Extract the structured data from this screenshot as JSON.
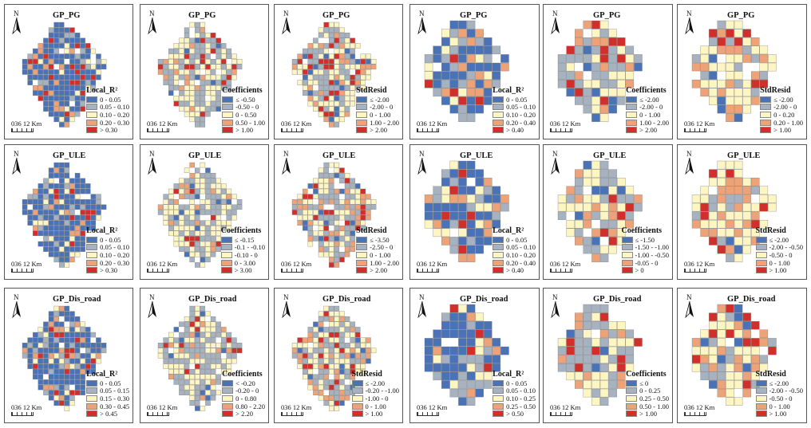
{
  "colors": {
    "blue": "#4a73b7",
    "grey": "#a6b2c0",
    "cream": "#fdf5c2",
    "orange": "#eda277",
    "red": "#d12f2c"
  },
  "scale_label": "036 12 Km",
  "north_label": "N",
  "panels": [
    {
      "title": "GP_PG",
      "legend_title": "Local_R²",
      "legend_items": [
        "0 - 0.05",
        "0.05 - 0.10",
        "0.10 - 0.20",
        "0.20 - 0.30",
        "> 0.30"
      ]
    },
    {
      "title": "GP_PG",
      "legend_title": "Coefficients",
      "legend_items": [
        "≤ -0.50",
        "-0.50 - 0",
        "0 - 0.50",
        "0.50 - 1.00",
        "> 1.00"
      ]
    },
    {
      "title": "GP_PG",
      "legend_title": "StdResid",
      "legend_items": [
        "≤ -2.00",
        "-2.00 - 0",
        "0 - 1.00",
        "1.00 - 2.00",
        "> 2.00"
      ]
    },
    {
      "title": "GP_PG",
      "legend_title": "Local_R²",
      "legend_items": [
        "0 - 0.05",
        "0.05 - 0.10",
        "0.10 - 0.20",
        "0.20 - 0.40",
        "> 0.40"
      ]
    },
    {
      "title": "GP_PG",
      "legend_title": "Coefficients",
      "legend_items": [
        "≤ -2.00",
        "-2.00 - 0",
        "0 - 1.00",
        "1.00 - 2.00",
        "> 2.00"
      ]
    },
    {
      "title": "GP_PG",
      "legend_title": "StdResid",
      "legend_items": [
        "≤ -2.00",
        "-2.00 - 0",
        "0 - 0.20",
        "0.20 - 1.00",
        "> 1.00"
      ]
    },
    {
      "title": "GP_ULE",
      "legend_title": "Local_R²",
      "legend_items": [
        "0 - 0.05",
        "0.05 - 0.10",
        "0.10 - 0.20",
        "0.20 - 0.30",
        "> 0.30"
      ]
    },
    {
      "title": "GP_ULE",
      "legend_title": "Coefficients",
      "legend_items": [
        "≤ -0.15",
        "-0.1 - -0.10",
        "-0.10 - 0",
        "0 - 3.00",
        "> 3.00"
      ]
    },
    {
      "title": "GP_ULE",
      "legend_title": "StdResid",
      "legend_items": [
        "≤ -3.50",
        "-2.50 - 0",
        "0 - 1.00",
        "1.00 - 2.00",
        "> 2.00"
      ]
    },
    {
      "title": "GP_ULE",
      "legend_title": "Local_R²",
      "legend_items": [
        "0 - 0.05",
        "0.05 - 0.10",
        "0.10 - 0.20",
        "0.20 - 0.40",
        "> 0.40"
      ]
    },
    {
      "title": "GP_ULE",
      "legend_title": "Coefficients",
      "legend_items": [
        "≤ -1.50",
        "-1.50 - -1.00",
        "-1.00 - -0.50",
        "-0.05 - 0",
        "> 0"
      ]
    },
    {
      "title": "GP_ULE",
      "legend_title": "StdResid",
      "legend_items": [
        "≤ -2.00",
        "-2.00 - -0.50",
        "-0.50 - 0",
        "0 - 1.00",
        "> 1.00"
      ]
    },
    {
      "title": "GP_Dis_road",
      "legend_title": "Local_R²",
      "legend_items": [
        "0 - 0.05",
        "0.05 - 0.15",
        "0.15 - 0.30",
        "0.30 - 0.45",
        "> 0.45"
      ]
    },
    {
      "title": "GP_Dis_road",
      "legend_title": "Coefficients",
      "legend_items": [
        "< -0.20",
        "-0.20 - 0",
        "0 - 0.80",
        "0.80 - 2.20",
        "> 2.20"
      ]
    },
    {
      "title": "GP_Dis_road",
      "legend_title": "StdResid",
      "legend_items": [
        "≤ -2.00",
        "-0.20 - -1.00",
        "-1.00 - 0",
        "0 - 1.00",
        "> 1.00"
      ]
    },
    {
      "title": "GP_Dis_road",
      "legend_title": "Local_R²",
      "legend_items": [
        "0 - 0.05",
        "0.05 - 0.10",
        "0.10 - 0.25",
        "0.25 - 0.50",
        "> 0.50"
      ]
    },
    {
      "title": "GP_Dis_road",
      "legend_title": "Coefficients",
      "legend_items": [
        "≤ 0",
        "0 - 0.25",
        "0.25 - 0.50",
        "0.50 - 1.00",
        "> 1.00"
      ]
    },
    {
      "title": "GP_Dis_road",
      "legend_title": "StdResid",
      "legend_items": [
        "≤ -2.00",
        "-2.00 - -0.50",
        "-0.50 - 0",
        "0 - 1.00",
        "> 1.00"
      ]
    }
  ]
}
